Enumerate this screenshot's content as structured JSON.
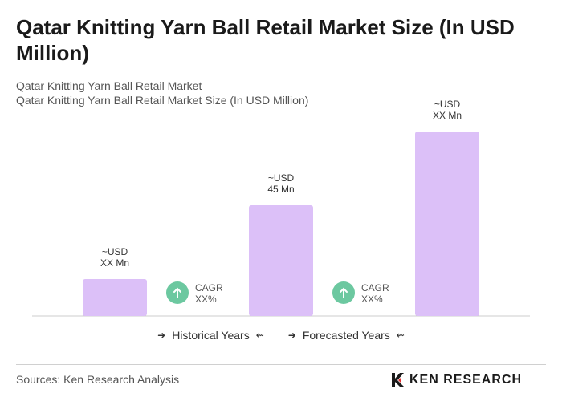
{
  "title": "Qatar Knitting Yarn Ball Retail Market Size (In USD Million)",
  "subtitle_line1": "Qatar Knitting Yarn Ball Retail Market",
  "subtitle_line2": "Qatar Knitting Yarn Ball Retail Market Size (In USD Million)",
  "chart_data": {
    "type": "bar",
    "categories": [
      "",
      "",
      ""
    ],
    "values": [
      15,
      45,
      75
    ],
    "value_labels": [
      [
        "~USD",
        "XX Mn"
      ],
      [
        "~USD",
        "45 Mn"
      ],
      [
        "~USD",
        "XX Mn"
      ]
    ],
    "bar_color": "#dcc0f8",
    "ylim": [
      0,
      80
    ],
    "grid": false,
    "cagr_markers": [
      {
        "line1": "CAGR",
        "line2": "XX%"
      },
      {
        "line1": "CAGR",
        "line2": "XX%"
      }
    ],
    "cagr_color": "#6cc8a0",
    "legend": {
      "historical": "Historical Years",
      "forecasted": "Forecasted Years"
    }
  },
  "source": "Sources: Ken Research Analysis",
  "logo_text": "KEN RESEARCH"
}
